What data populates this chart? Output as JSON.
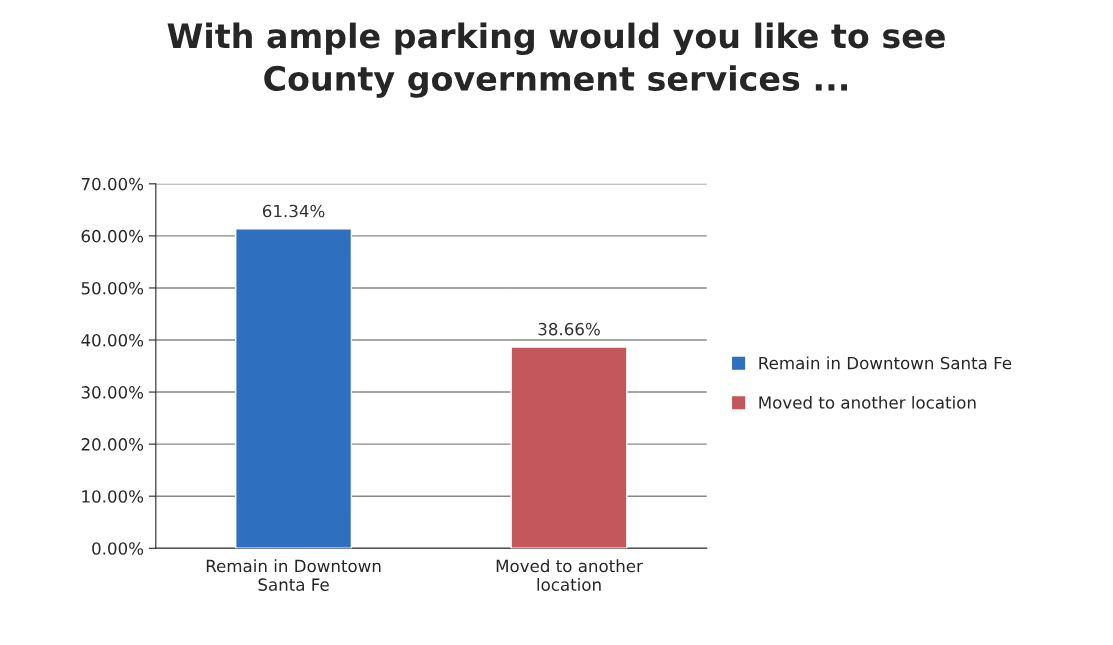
{
  "chart_data": {
    "type": "bar",
    "title": "With ample parking would you like to see\nCounty government services ...",
    "categories": [
      "Remain in Downtown\nSanta Fe",
      "Moved to another\nlocation"
    ],
    "series": [
      {
        "name": "Remain in Downtown Santa Fe",
        "color": "#2f6fc0",
        "values": [
          61.34,
          null
        ]
      },
      {
        "name": "Moved to another location",
        "color": "#c4575b",
        "values": [
          null,
          38.66
        ]
      }
    ],
    "value_labels": [
      "61.34%",
      "38.66%"
    ],
    "ylim": [
      0,
      70
    ],
    "yticks": [
      {
        "value": 0,
        "label": "0.00%"
      },
      {
        "value": 10,
        "label": "10.00%"
      },
      {
        "value": 20,
        "label": "20.00%"
      },
      {
        "value": 30,
        "label": "30.00%"
      },
      {
        "value": 40,
        "label": "40.00%"
      },
      {
        "value": 50,
        "label": "50.00%"
      },
      {
        "value": 60,
        "label": "60.00%"
      },
      {
        "value": 70,
        "label": "70.00%"
      }
    ],
    "grid": "y",
    "legend": "right"
  }
}
